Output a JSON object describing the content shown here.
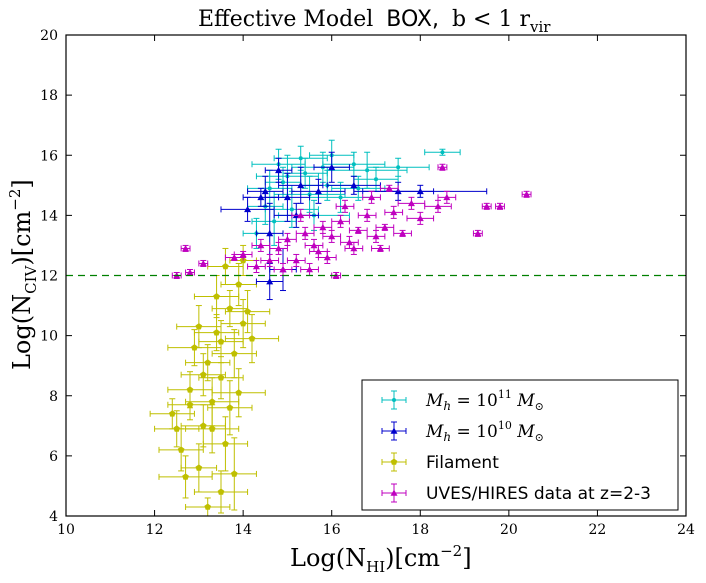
{
  "chart_data": {
    "type": "scatter",
    "title_prefix": "Effective Model",
    "title_box": "BOX,",
    "title_suffix": "b  <  1 r",
    "title_sub": "vir",
    "xlabel_main": "Log(N",
    "xlabel_sub": "HI",
    "xlabel_rest": ")[cm",
    "xlabel_sup": "−2",
    "xlabel_end": "]",
    "ylabel_main": "Log(N",
    "ylabel_sub": "CIV",
    "ylabel_rest": ")[cm",
    "ylabel_sup": "−2",
    "ylabel_end": "]",
    "xlim": [
      10,
      24
    ],
    "ylim": [
      4,
      20
    ],
    "xticks": [
      "10",
      "12",
      "14",
      "16",
      "18",
      "20",
      "22",
      "24"
    ],
    "yticks": [
      "4",
      "6",
      "8",
      "10",
      "12",
      "14",
      "16",
      "18",
      "20"
    ],
    "threshold": {
      "y": 12,
      "color": "#008000",
      "style": "dashed"
    },
    "legend_position": "lower-right",
    "series": [
      {
        "name": "M_h = 10^11 M_sun",
        "legend_label": "M",
        "legend_sub": "h",
        "legend_eq": " = 10",
        "legend_sup": "11",
        "legend_unit": " M",
        "legend_unit_sub": "⊙",
        "color": "#00bfbf",
        "marker": "dot",
        "points": [
          [
            14.3,
            13.4,
            0.3,
            0.5
          ],
          [
            14.6,
            14.9,
            0.5,
            0.6
          ],
          [
            14.8,
            15.7,
            0.6,
            0.5
          ],
          [
            15.0,
            15.3,
            0.7,
            0.7
          ],
          [
            15.3,
            15.9,
            0.6,
            0.4
          ],
          [
            15.5,
            14.7,
            0.8,
            0.6
          ],
          [
            15.8,
            15.6,
            0.7,
            0.5
          ],
          [
            16.0,
            16.0,
            0.5,
            0.5
          ],
          [
            16.5,
            15.7,
            0.7,
            0.4
          ],
          [
            16.8,
            15.5,
            0.9,
            0.6
          ],
          [
            17.5,
            15.6,
            0.7,
            0.3
          ],
          [
            18.5,
            16.1,
            0.4,
            0.1
          ],
          [
            14.7,
            13.8,
            0.5,
            0.8
          ],
          [
            15.1,
            14.2,
            0.6,
            0.6
          ],
          [
            15.6,
            14.0,
            0.8,
            0.5
          ],
          [
            16.2,
            14.6,
            0.7,
            0.5
          ],
          [
            16.6,
            14.9,
            0.6,
            0.4
          ],
          [
            14.5,
            14.3,
            0.4,
            0.6
          ],
          [
            15.9,
            15.0,
            0.6,
            0.5
          ],
          [
            17.0,
            15.2,
            0.5,
            0.4
          ],
          [
            14.9,
            15.1,
            0.4,
            0.5
          ],
          [
            15.4,
            15.4,
            0.5,
            0.5
          ]
        ]
      },
      {
        "name": "M_h = 10^10 M_sun",
        "legend_label": "M",
        "legend_sub": "h",
        "legend_eq": " = 10",
        "legend_sup": "10",
        "legend_unit": " M",
        "legend_unit_sub": "⊙",
        "color": "#0000cc",
        "marker": "triangle",
        "points": [
          [
            14.1,
            14.2,
            0.6,
            0.4
          ],
          [
            14.5,
            14.8,
            0.4,
            0.5
          ],
          [
            14.8,
            15.5,
            0.3,
            0.4
          ],
          [
            15.0,
            14.6,
            0.5,
            0.8
          ],
          [
            15.3,
            15.0,
            0.5,
            0.6
          ],
          [
            16.0,
            15.6,
            0.4,
            0.5
          ],
          [
            15.7,
            14.8,
            0.6,
            0.4
          ],
          [
            16.5,
            15.0,
            0.6,
            0.3
          ],
          [
            17.5,
            14.8,
            0.8,
            0.3
          ],
          [
            18.0,
            14.8,
            1.5,
            0.2
          ],
          [
            14.6,
            13.4,
            0.3,
            1.0
          ],
          [
            14.9,
            12.2,
            0.3,
            0.7
          ],
          [
            14.6,
            11.8,
            0.3,
            0.6
          ],
          [
            15.2,
            14.0,
            0.5,
            0.4
          ],
          [
            14.4,
            14.6,
            0.4,
            0.3
          ]
        ]
      },
      {
        "name": "Filament",
        "legend_label": "Filament",
        "color": "#bfbf00",
        "marker": "pentagon",
        "points": [
          [
            12.4,
            7.4,
            0.5,
            0.5
          ],
          [
            12.6,
            6.2,
            0.5,
            0.7
          ],
          [
            12.8,
            8.2,
            0.5,
            0.6
          ],
          [
            13.0,
            5.6,
            0.4,
            0.8
          ],
          [
            13.1,
            7.0,
            0.5,
            0.7
          ],
          [
            13.2,
            9.1,
            0.5,
            0.6
          ],
          [
            13.3,
            7.8,
            0.6,
            0.8
          ],
          [
            13.4,
            10.1,
            0.5,
            0.6
          ],
          [
            13.5,
            8.6,
            0.5,
            0.7
          ],
          [
            13.6,
            6.4,
            0.5,
            0.9
          ],
          [
            13.7,
            10.9,
            0.4,
            0.6
          ],
          [
            13.8,
            9.4,
            0.5,
            0.8
          ],
          [
            13.9,
            11.7,
            0.4,
            0.7
          ],
          [
            14.0,
            10.4,
            0.5,
            0.8
          ],
          [
            13.2,
            4.3,
            0.5,
            0.3
          ],
          [
            13.5,
            4.8,
            0.6,
            0.7
          ],
          [
            12.9,
            9.6,
            0.6,
            0.6
          ],
          [
            13.4,
            11.3,
            0.5,
            0.7
          ],
          [
            13.7,
            7.6,
            0.5,
            0.9
          ],
          [
            14.2,
            9.9,
            0.6,
            0.8
          ],
          [
            12.7,
            5.3,
            0.6,
            0.7
          ],
          [
            13.1,
            8.7,
            0.5,
            0.7
          ],
          [
            13.6,
            12.3,
            0.4,
            0.6
          ],
          [
            13.9,
            8.1,
            0.6,
            0.8
          ],
          [
            14.1,
            10.8,
            0.5,
            0.7
          ],
          [
            13.3,
            6.9,
            0.6,
            0.8
          ],
          [
            12.5,
            6.9,
            0.5,
            0.6
          ],
          [
            13.8,
            5.4,
            0.5,
            1.2
          ],
          [
            14.0,
            12.5,
            0.3,
            0.5
          ],
          [
            13.0,
            10.3,
            0.5,
            0.7
          ],
          [
            12.8,
            7.7,
            0.5,
            0.5
          ],
          [
            13.5,
            9.8,
            0.5,
            0.7
          ]
        ]
      },
      {
        "name": "UVES/HIRES data at z=2-3",
        "legend_label": "UVES/HIRES data at z=2-3",
        "color": "#bf00bf",
        "marker": "triangle",
        "points": [
          [
            12.5,
            12.0,
            0.1,
            0.1
          ],
          [
            12.7,
            12.9,
            0.1,
            0.1
          ],
          [
            12.8,
            12.1,
            0.1,
            0.1
          ],
          [
            13.1,
            12.4,
            0.1,
            0.1
          ],
          [
            13.8,
            12.6,
            0.2,
            0.1
          ],
          [
            14.0,
            12.7,
            0.2,
            0.1
          ],
          [
            14.3,
            12.3,
            0.2,
            0.2
          ],
          [
            14.6,
            12.5,
            0.2,
            0.2
          ],
          [
            14.8,
            12.9,
            0.2,
            0.2
          ],
          [
            15.0,
            13.2,
            0.2,
            0.2
          ],
          [
            15.2,
            12.5,
            0.2,
            0.2
          ],
          [
            15.4,
            13.4,
            0.2,
            0.2
          ],
          [
            15.6,
            13.0,
            0.2,
            0.2
          ],
          [
            15.8,
            13.6,
            0.2,
            0.2
          ],
          [
            16.0,
            13.3,
            0.2,
            0.2
          ],
          [
            16.2,
            13.8,
            0.2,
            0.2
          ],
          [
            16.4,
            13.1,
            0.2,
            0.2
          ],
          [
            16.6,
            13.5,
            0.2,
            0.1
          ],
          [
            16.8,
            14.0,
            0.2,
            0.2
          ],
          [
            17.0,
            13.3,
            0.2,
            0.2
          ],
          [
            17.2,
            13.6,
            0.2,
            0.1
          ],
          [
            17.4,
            14.1,
            0.2,
            0.2
          ],
          [
            17.6,
            13.4,
            0.2,
            0.1
          ],
          [
            17.8,
            14.4,
            0.3,
            0.2
          ],
          [
            18.0,
            13.9,
            0.3,
            0.2
          ],
          [
            18.4,
            14.3,
            0.3,
            0.2
          ],
          [
            18.5,
            15.6,
            0.1,
            0.1
          ],
          [
            18.6,
            14.6,
            0.2,
            0.2
          ],
          [
            19.3,
            13.4,
            0.1,
            0.1
          ],
          [
            19.5,
            14.3,
            0.1,
            0.1
          ],
          [
            19.8,
            14.3,
            0.1,
            0.1
          ],
          [
            20.4,
            14.7,
            0.1,
            0.1
          ],
          [
            15.5,
            12.2,
            0.2,
            0.2
          ],
          [
            15.9,
            12.6,
            0.2,
            0.2
          ],
          [
            16.1,
            12.0,
            0.1,
            0.1
          ],
          [
            14.9,
            12.2,
            0.2,
            0.2
          ],
          [
            15.3,
            14.0,
            0.2,
            0.2
          ],
          [
            16.3,
            14.3,
            0.2,
            0.2
          ],
          [
            16.9,
            14.6,
            0.2,
            0.2
          ],
          [
            17.3,
            14.9,
            0.2,
            0.1
          ],
          [
            15.7,
            12.8,
            0.2,
            0.2
          ],
          [
            16.5,
            12.9,
            0.2,
            0.2
          ],
          [
            17.1,
            12.9,
            0.2,
            0.1
          ],
          [
            14.4,
            13.0,
            0.2,
            0.2
          ]
        ]
      }
    ]
  }
}
